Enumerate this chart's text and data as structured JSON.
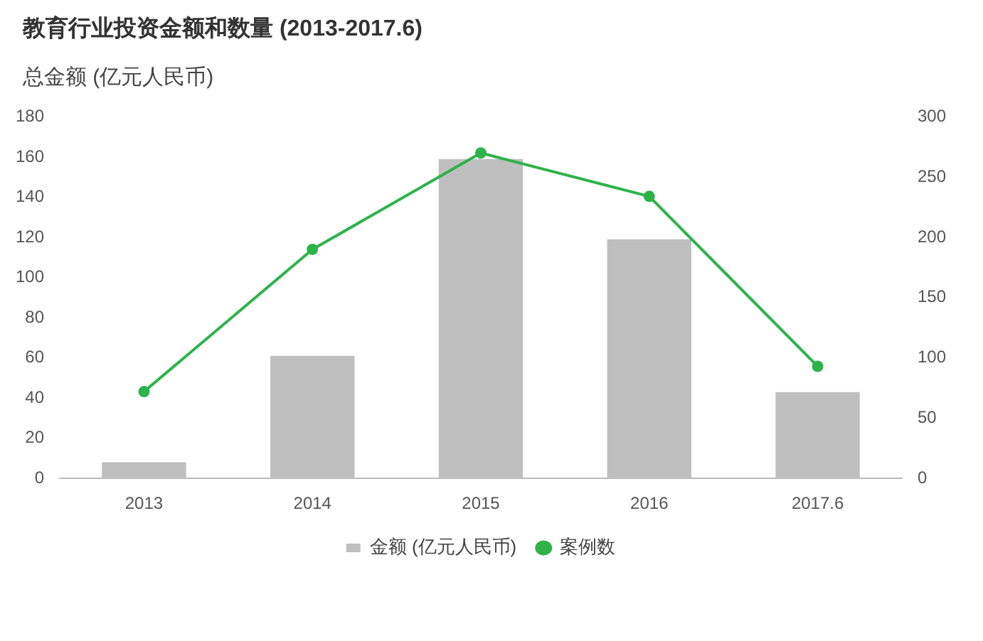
{
  "chart_data": {
    "type": "bar",
    "title": "教育行业投资金额和数量 (2013-2017.6)",
    "ylabel": "总金额 (亿元人民币)",
    "categories": [
      "2013",
      "2014",
      "2015",
      "2016",
      "2017.6"
    ],
    "series": [
      {
        "name": "金额 (亿元人民币)",
        "color": "#bfbfbf",
        "values": [
          8,
          61,
          159,
          119,
          43
        ]
      },
      {
        "name": "案例数",
        "type": "line",
        "axis": "y2",
        "color": "#2db34a",
        "values": [
          72,
          190,
          270,
          234,
          93
        ],
        "marker": "circle",
        "line_style": "solid"
      }
    ],
    "ylim": [
      0,
      180
    ],
    "yticks": [
      0,
      20,
      40,
      60,
      80,
      100,
      120,
      140,
      160,
      180
    ],
    "y2lim": [
      0,
      300
    ],
    "y2ticks": [
      0,
      50,
      100,
      150,
      200,
      250,
      300
    ],
    "grid": false,
    "legend": "bottom"
  }
}
